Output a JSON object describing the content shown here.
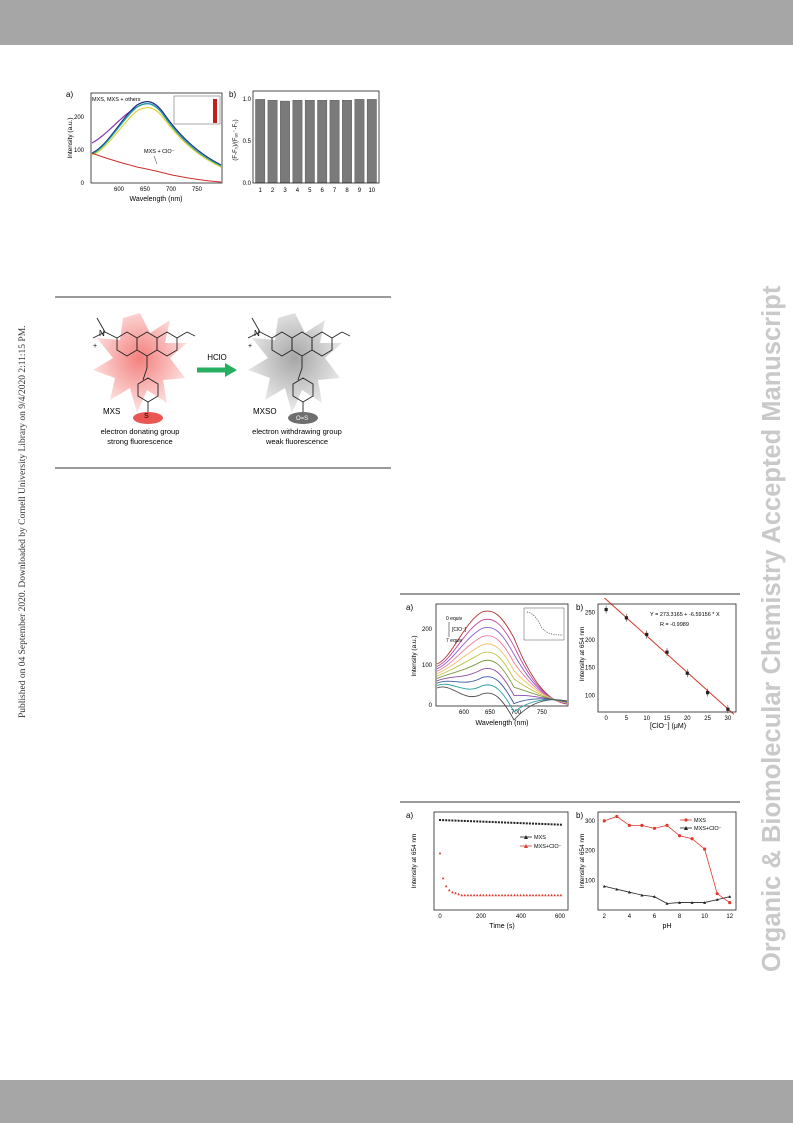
{
  "side_notes": {
    "left": "Published on 04 September 2020. Downloaded by Cornell University Library on 9/4/2020 2:11:15 PM.",
    "right": "Organic & Biomolecular Chemistry Accepted Manuscript"
  },
  "figure1": {
    "panel_a": {
      "label": "a)",
      "ylabel": "Intensity (a.u.)",
      "xlabel": "Wavelength (nm)",
      "x_ticks": [
        "600",
        "650",
        "700",
        "750"
      ],
      "y_ticks": [
        "0",
        "100",
        "200"
      ],
      "annot_top": "MXS, MXS + others",
      "annot_bottom": "MXS + ClO⁻"
    },
    "panel_b": {
      "label": "b)",
      "ylabel": "(F-F₀)/(Fₐ₀⁻-F₀)",
      "y_ticks": [
        "0.0",
        "0.5",
        "1.0"
      ],
      "x_ticks": [
        "1",
        "2",
        "3",
        "4",
        "5",
        "6",
        "7",
        "8",
        "9",
        "10"
      ]
    }
  },
  "scheme": {
    "left_label": "MXS",
    "right_label": "MXSO",
    "reagent": "HClO",
    "left_caption_1": "electron donating group",
    "left_caption_2": "strong fluorescence",
    "right_caption_1": "electron withdrawing group",
    "right_caption_2": "weak fluorescence",
    "sulfur": "S",
    "oxide": "O=S",
    "n_plus": "N",
    "plus": "+"
  },
  "figure2": {
    "panel_a": {
      "label": "a)",
      "ylabel": "Intensity (a.u.)",
      "xlabel": "Wavelength (nm)",
      "x_ticks": [
        "600",
        "650",
        "700",
        "750"
      ],
      "y_ticks": [
        "0",
        "100",
        "200"
      ],
      "legend_top": "0 equiv",
      "legend_mid": "[ClO⁻]",
      "legend_bottom": "7 equiv"
    },
    "panel_b": {
      "label": "b)",
      "ylabel": "Intensity at 654 nm",
      "xlabel": "[ClO⁻] (μM)",
      "equation": "Y = 273.3165 + -6.59156 * X",
      "r_value": "R = -0.9989",
      "x_ticks": [
        "0",
        "5",
        "10",
        "15",
        "20",
        "25",
        "30"
      ],
      "y_ticks": [
        "100",
        "150",
        "200",
        "250"
      ]
    }
  },
  "figure3": {
    "panel_a": {
      "label": "a)",
      "ylabel": "Intensity at 654 nm",
      "xlabel": "Time (s)",
      "x_ticks": [
        "0",
        "200",
        "400",
        "600"
      ],
      "legend_1": "MXS",
      "legend_2": "MXS+ClO⁻"
    },
    "panel_b": {
      "label": "b)",
      "ylabel": "Intensity at 654 nm",
      "xlabel": "pH",
      "x_ticks": [
        "2",
        "4",
        "6",
        "8",
        "10",
        "12"
      ],
      "y_ticks": [
        "100",
        "200",
        "300"
      ],
      "legend_1": "MXS",
      "legend_2": "MXS+ClO⁻"
    }
  },
  "chart_data": [
    {
      "type": "bar",
      "categories": [
        "1",
        "2",
        "3",
        "4",
        "5",
        "6",
        "7",
        "8",
        "9",
        "10"
      ],
      "values": [
        1.0,
        0.99,
        0.98,
        0.99,
        0.99,
        0.99,
        0.99,
        0.99,
        1.0,
        1.0
      ],
      "ylim": [
        0,
        1.1
      ],
      "color": "#7a7a7a"
    },
    {
      "type": "scatter",
      "x": [
        0,
        5,
        10,
        15,
        20,
        25,
        30
      ],
      "values": [
        255,
        240,
        210,
        178,
        140,
        105,
        75
      ],
      "fit": {
        "intercept": 273.3165,
        "slope": -6.59156
      },
      "xlim": [
        -2,
        32
      ],
      "ylim": [
        70,
        265
      ],
      "color": "#d93a2b"
    },
    {
      "type": "line",
      "x": [
        2,
        3,
        4,
        5,
        6,
        7,
        8,
        9,
        10,
        11,
        12
      ],
      "series": [
        {
          "name": "MXS",
          "values": [
            300,
            315,
            285,
            285,
            275,
            285,
            250,
            240,
            205,
            55,
            25
          ],
          "color": "#e03a30"
        },
        {
          "name": "MXS+ClO⁻",
          "values": [
            80,
            70,
            60,
            50,
            45,
            22,
            25,
            25,
            25,
            35,
            45
          ],
          "color": "#222222"
        }
      ],
      "xlim": [
        1.5,
        12.5
      ],
      "ylim": [
        0,
        330
      ]
    }
  ]
}
